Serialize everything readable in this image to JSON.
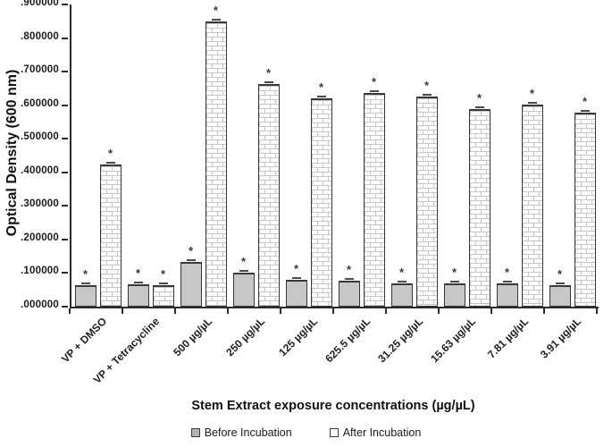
{
  "chart_data": {
    "type": "bar",
    "title": "",
    "xlabel": "Stem Extract exposure concentrations (µg/µL)",
    "ylabel": "Optical Density (600 nm)",
    "categories": [
      "VP + DMSO",
      "VP + Tetracycline",
      "500 µg/µL",
      "250 µg/µL",
      "125 µg/µL",
      "625.5 µg/µL",
      "31.25 µg/µL",
      "15.63 µg/µL",
      "7.81 µg/µL",
      "3.91 µg/µL"
    ],
    "series": [
      {
        "name": "Before Incubation",
        "style": "solid-gray",
        "values": [
          0.063,
          0.067,
          0.132,
          0.1,
          0.081,
          0.076,
          0.069,
          0.068,
          0.068,
          0.065
        ]
      },
      {
        "name": "After Incubation",
        "style": "brick-pattern",
        "values": [
          0.423,
          0.063,
          0.85,
          0.662,
          0.62,
          0.636,
          0.627,
          0.589,
          0.601,
          0.577
        ]
      }
    ],
    "significance_marker": "*",
    "bars_marked_significant": "all",
    "error_bars": "small caps on every bar top",
    "y_ticks": [
      ".000000",
      ".100000",
      ".200000",
      ".300000",
      ".400000",
      ".500000",
      ".600000",
      ".700000",
      ".800000",
      ".900000"
    ],
    "ylim": [
      0,
      0.9
    ],
    "grid": false,
    "legend_position": "bottom-center"
  },
  "colors": {
    "background": "#ffffff",
    "axis": "#2b2b2b",
    "text": "#1a1a1a",
    "bar_before_fill": "#c7c7c7",
    "bar_after_fill": "#fdfdfd",
    "bar_border": "#383838",
    "brick_mortar_line": "#c6c6c6",
    "asterisk": "#3a3a3a"
  }
}
